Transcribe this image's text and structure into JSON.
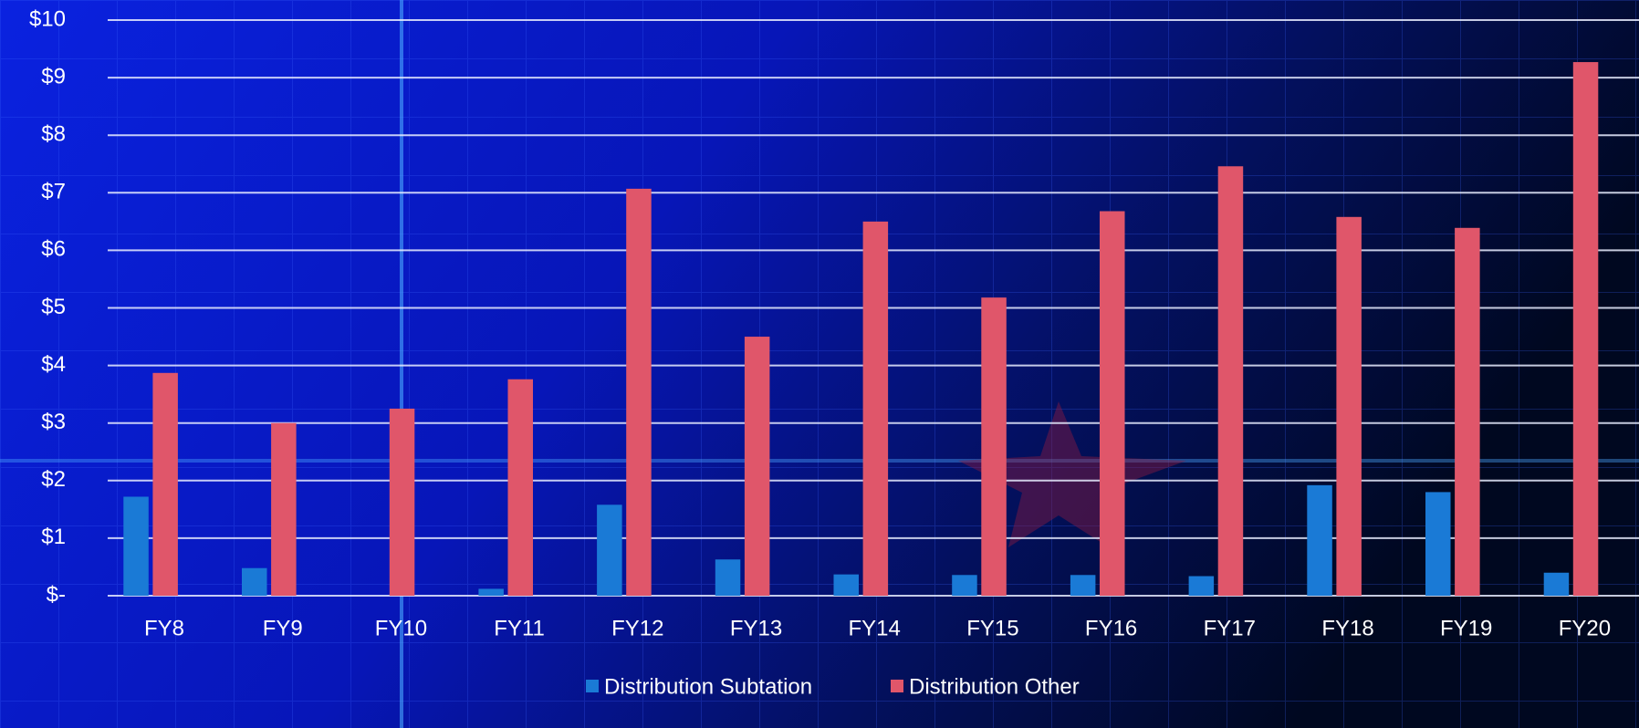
{
  "chart_data": {
    "type": "bar",
    "categories": [
      "FY8",
      "FY9",
      "FY10",
      "FY11",
      "FY12",
      "FY13",
      "FY14",
      "FY15",
      "FY16",
      "FY17",
      "FY18",
      "FY19",
      "FY20"
    ],
    "series": [
      {
        "name": "Distribution Subtation",
        "color": "#1a7ad6",
        "values": [
          1.72,
          0.48,
          0,
          0.12,
          1.58,
          0.63,
          0.37,
          0.36,
          0.36,
          0.34,
          1.92,
          1.8,
          0.4
        ]
      },
      {
        "name": "Distribution Other",
        "color": "#e0566a",
        "values": [
          3.87,
          3.0,
          3.25,
          3.76,
          7.07,
          4.5,
          6.5,
          5.18,
          6.68,
          7.46,
          6.58,
          6.39,
          9.27
        ]
      }
    ],
    "ylim": [
      0,
      10
    ],
    "yticks": [
      {
        "value": 0,
        "label": "$-"
      },
      {
        "value": 1,
        "label": "$1"
      },
      {
        "value": 2,
        "label": "$2"
      },
      {
        "value": 3,
        "label": "$3"
      },
      {
        "value": 4,
        "label": "$4"
      },
      {
        "value": 5,
        "label": "$5"
      },
      {
        "value": 6,
        "label": "$6"
      },
      {
        "value": 7,
        "label": "$7"
      },
      {
        "value": 8,
        "label": "$8"
      },
      {
        "value": 9,
        "label": "$9"
      },
      {
        "value": 10,
        "label": "$10"
      }
    ],
    "grid": true
  }
}
